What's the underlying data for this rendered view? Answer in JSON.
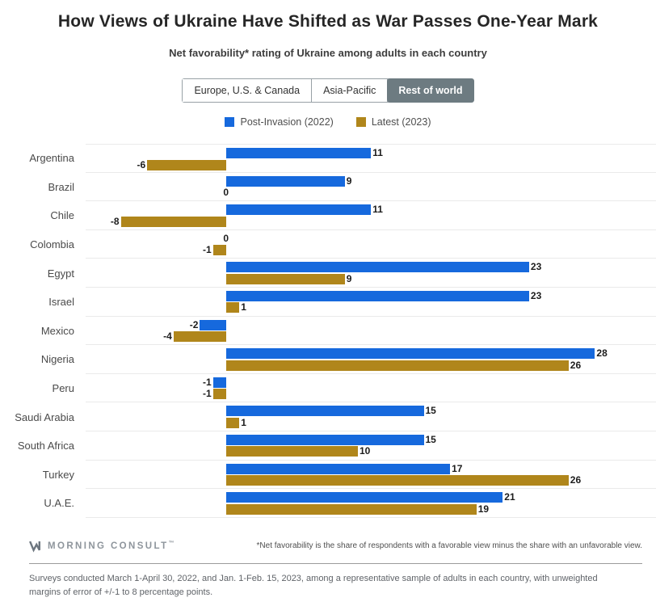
{
  "header": {
    "title": "How Views of Ukraine Have Shifted as War Passes One-Year Mark",
    "subtitle": "Net favorability* rating of Ukraine among adults in each country"
  },
  "tabs": [
    {
      "label": "Europe, U.S. & Canada",
      "active": false
    },
    {
      "label": "Asia-Pacific",
      "active": false
    },
    {
      "label": "Rest of world",
      "active": true
    }
  ],
  "legend": [
    {
      "label": "Post-Invasion (2022)",
      "color": "#1669dd"
    },
    {
      "label": "Latest (2023)",
      "color": "#b0861b"
    }
  ],
  "colors": {
    "post_invasion": "#1669dd",
    "latest": "#b0861b",
    "active_tab": "#6d7b81"
  },
  "chart_data": {
    "type": "bar",
    "orientation": "horizontal",
    "title": "How Views of Ukraine Have Shifted as War Passes One-Year Mark",
    "subtitle": "Net favorability* rating of Ukraine among adults in each country",
    "categories": [
      "Argentina",
      "Brazil",
      "Chile",
      "Colombia",
      "Egypt",
      "Israel",
      "Mexico",
      "Nigeria",
      "Peru",
      "Saudi Arabia",
      "South Africa",
      "Turkey",
      "U.A.E."
    ],
    "series": [
      {
        "name": "Post-Invasion (2022)",
        "color": "#1669dd",
        "values": [
          11,
          9,
          11,
          0,
          23,
          23,
          -2,
          28,
          -1,
          15,
          15,
          17,
          21
        ]
      },
      {
        "name": "Latest (2023)",
        "color": "#b0861b",
        "values": [
          -6,
          0,
          -8,
          -1,
          9,
          1,
          -4,
          26,
          -1,
          1,
          10,
          26,
          19
        ]
      }
    ],
    "xlim": [
      -11,
      32
    ],
    "value_labels": true,
    "grid": "row-separators-only",
    "legend_position": "top"
  },
  "footer": {
    "brand": "MORNING CONSULT",
    "trademark": "™",
    "footnote": "*Net favorability is the share of respondents with a favorable view minus the share with an unfavorable view.",
    "source_note": "Surveys conducted March 1-April 30, 2022, and Jan. 1-Feb. 15, 2023, among a representative sample of adults in each country, with unweighted margins of error of +/-1 to 8 percentage points."
  }
}
